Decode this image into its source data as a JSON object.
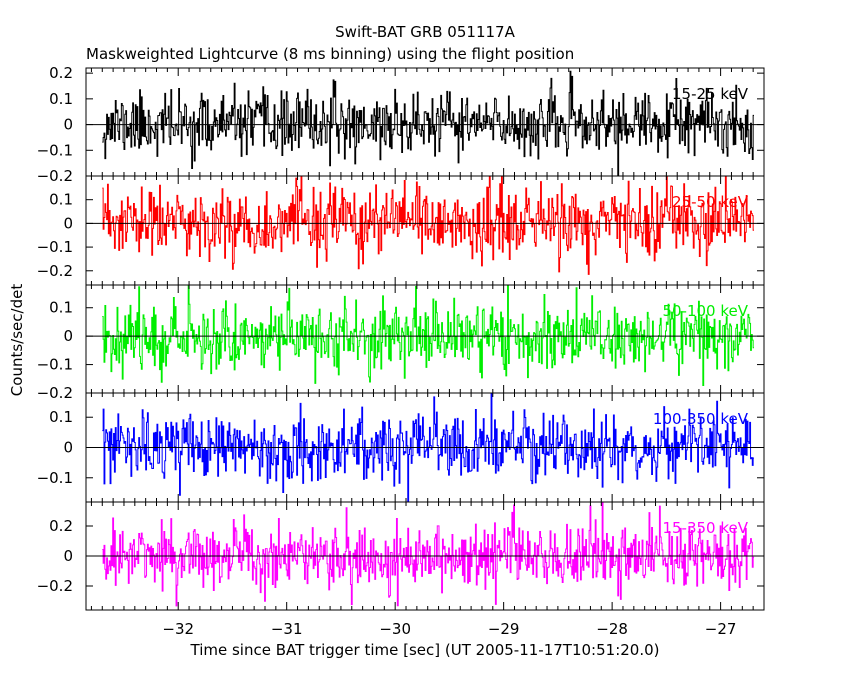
{
  "chart_data": {
    "type": "line",
    "title": "Swift-BAT GRB 051117A",
    "subtitle": "Maskweighted Lightcurve (8 ms binning) using the flight position",
    "xlabel": "Time since BAT trigger time [sec] (UT 2005-11-17T10:51:20.0)",
    "ylabel": "Counts/sec/det",
    "xlim": [
      -32.85,
      -26.6
    ],
    "x_range": [
      -32.7,
      -26.7
    ],
    "bin_width": 0.008,
    "x_ticks": [
      -32,
      -31,
      -30,
      -29,
      -28,
      -27
    ],
    "x_tick_labels": [
      "−32",
      "−31",
      "−30",
      "−29",
      "−28",
      "−27"
    ],
    "grid": false,
    "panels": [
      {
        "name": "15-25 keV",
        "color": "#000000",
        "ylim": [
          -0.2,
          0.22
        ],
        "y_ticks": [
          -0.2,
          -0.1,
          0,
          0.1,
          0.2
        ],
        "y_tick_labels": [
          "−0.2",
          "−0.1",
          "0",
          "0.1",
          "0.2"
        ],
        "amplitude": 0.06,
        "seed": 11
      },
      {
        "name": "25-50 keV",
        "color": "#ff0000",
        "ylim": [
          -0.26,
          0.2
        ],
        "y_ticks": [
          -0.2,
          -0.1,
          0,
          0.1
        ],
        "y_tick_labels": [
          "−0.2",
          "−0.1",
          "0",
          "0.1"
        ],
        "amplitude": 0.075,
        "seed": 23
      },
      {
        "name": "50-100 keV",
        "color": "#00ee00",
        "ylim": [
          -0.2,
          0.18
        ],
        "y_ticks": [
          -0.2,
          -0.1,
          0,
          0.1
        ],
        "y_tick_labels": [
          "−0.2",
          "−0.1",
          "0",
          "0.1"
        ],
        "amplitude": 0.06,
        "seed": 37
      },
      {
        "name": "100-350 keV",
        "color": "#0000ff",
        "ylim": [
          -0.18,
          0.18
        ],
        "y_ticks": [
          -0.1,
          0,
          0.1
        ],
        "y_tick_labels": [
          "−0.1",
          "0",
          "0.1"
        ],
        "amplitude": 0.055,
        "seed": 53
      },
      {
        "name": "15-350 keV",
        "color": "#ff00ff",
        "ylim": [
          -0.36,
          0.36
        ],
        "y_ticks": [
          -0.2,
          0,
          0.2
        ],
        "y_tick_labels": [
          "−0.2",
          "0",
          "0.2"
        ],
        "amplitude": 0.11,
        "seed": 71
      }
    ]
  }
}
